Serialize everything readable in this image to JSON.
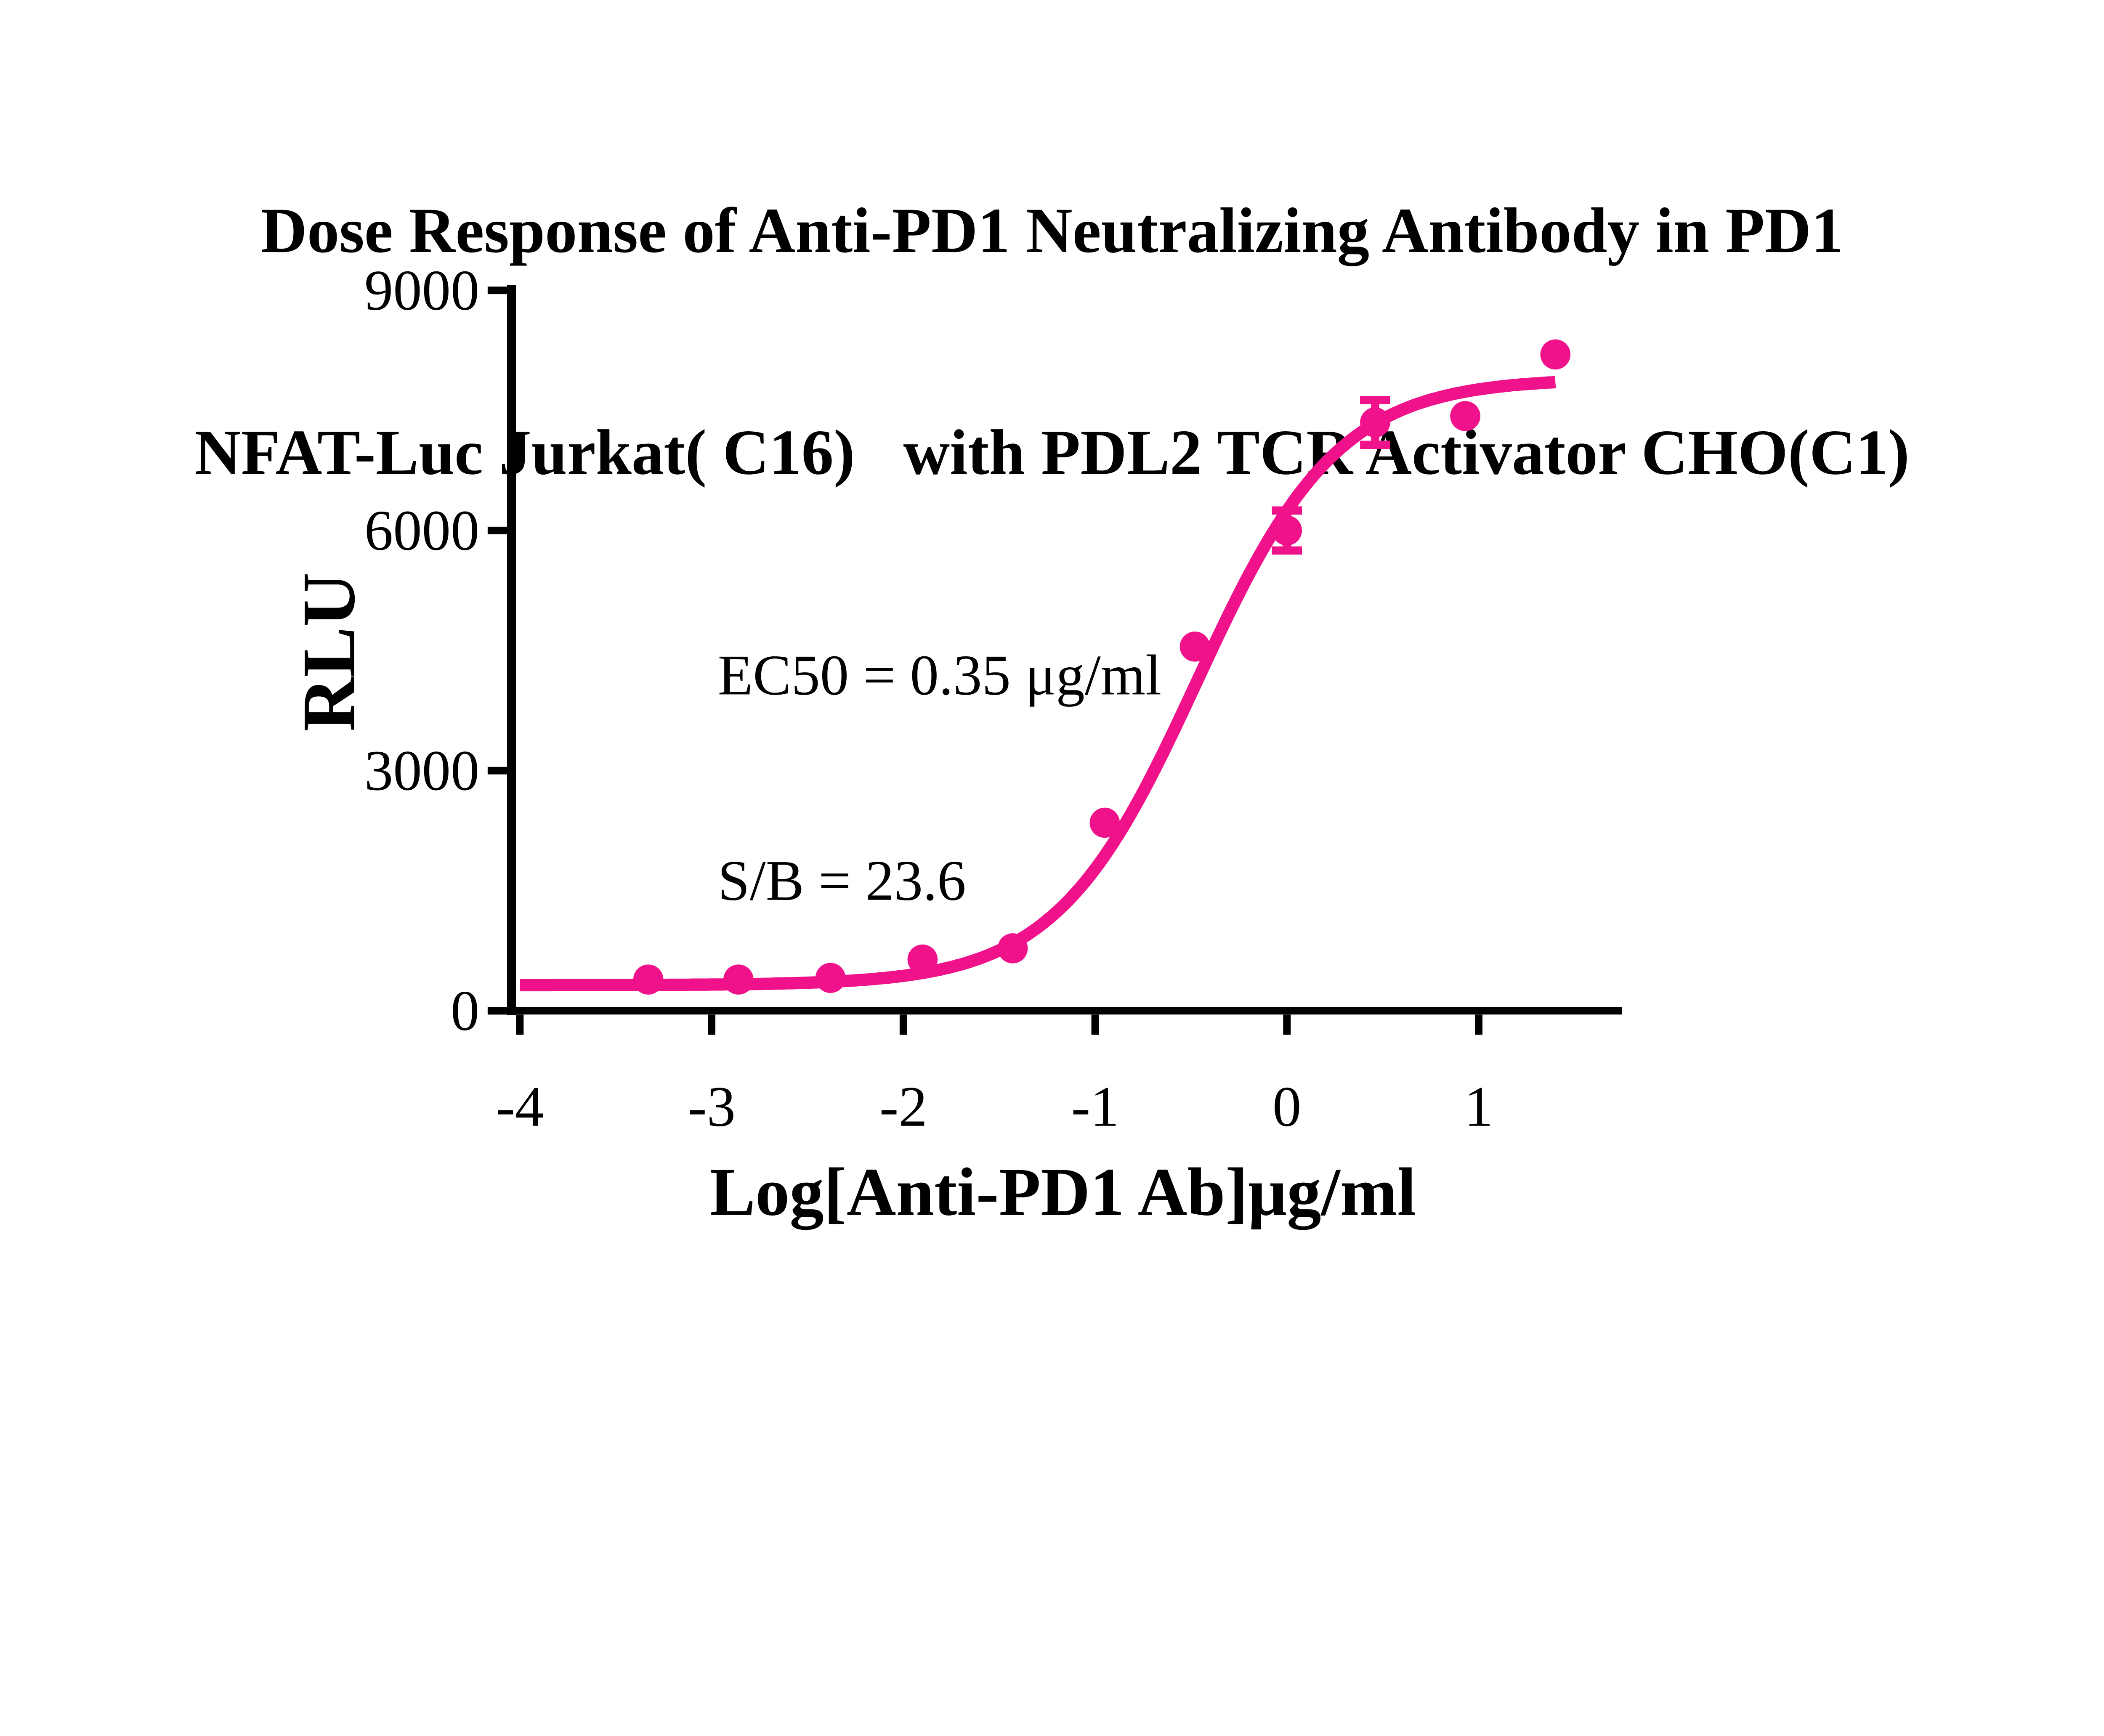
{
  "title": {
    "line1": "Dose Response of Anti-PD1 Neutralizing Antibody in PD1",
    "line2": "NFAT-Luc Jurkat( C16)   with PDL2 TCR Activator CHO(C1)"
  },
  "annotation": {
    "line1": "EC50 = 0.35 μg/ml",
    "line2": "S/B = 23.6"
  },
  "y_axis": {
    "label": "RLU",
    "ticks": [
      0,
      3000,
      6000,
      9000
    ],
    "range": [
      0,
      9000
    ]
  },
  "x_axis": {
    "label": "Log[Anti-PD1 Ab]μg/ml",
    "ticks": [
      -4,
      -3,
      -2,
      -1,
      0,
      1
    ],
    "range": [
      -4,
      1.74
    ]
  },
  "colors": {
    "series": "#F0128A",
    "axis": "#000000",
    "text": "#000000"
  },
  "chart_data": {
    "type": "scatter",
    "title": "Dose Response of Anti-PD1 Neutralizing Antibody in PD1 NFAT-Luc Jurkat( C16) with PDL2 TCR Activator CHO(C1)",
    "xlabel": "Log[Anti-PD1 Ab]μg/ml",
    "ylabel": "RLU",
    "xlim": [
      -4,
      1.74
    ],
    "ylim": [
      0,
      9000
    ],
    "grid": false,
    "legend": "none",
    "ec50_ug_ml": 0.35,
    "signal_to_background": 23.6,
    "points": [
      {
        "x": -3.33,
        "y": 390,
        "err": 0
      },
      {
        "x": -2.86,
        "y": 390,
        "err": 0
      },
      {
        "x": -2.38,
        "y": 410,
        "err": 0
      },
      {
        "x": -1.9,
        "y": 640,
        "err": 0
      },
      {
        "x": -1.43,
        "y": 780,
        "err": 0
      },
      {
        "x": -0.95,
        "y": 2350,
        "err": 0
      },
      {
        "x": -0.48,
        "y": 4550,
        "err": 0
      },
      {
        "x": 0.0,
        "y": 6000,
        "err": 250
      },
      {
        "x": 0.46,
        "y": 7350,
        "err": 280
      },
      {
        "x": 0.93,
        "y": 7430,
        "err": 0
      },
      {
        "x": 1.4,
        "y": 8200,
        "err": 0
      }
    ],
    "fit_curve": {
      "model": "4PL",
      "bottom": 320,
      "top": 7900,
      "log_ec50": -0.47,
      "hill": 1.18,
      "x_start": -4,
      "x_end": 1.4
    }
  }
}
